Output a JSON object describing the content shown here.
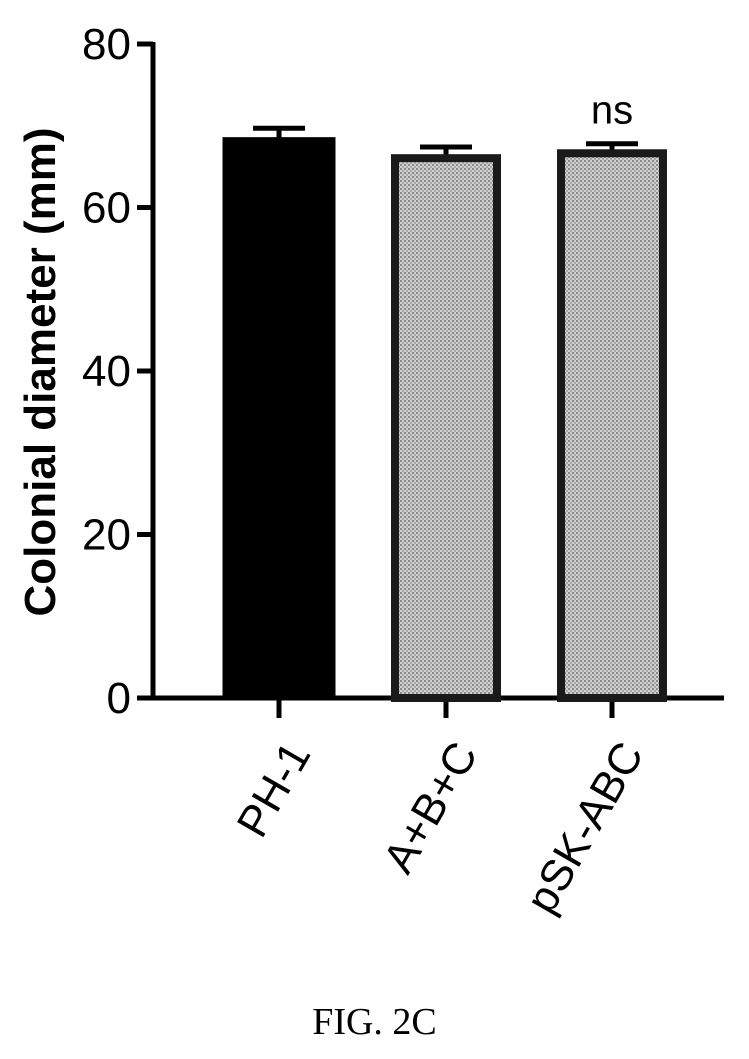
{
  "chart_data": {
    "type": "bar",
    "categories": [
      "PH-1",
      "A+B+C",
      "pSK-ABC"
    ],
    "series": [
      {
        "values": [
          68.3,
          66.4,
          67.0
        ],
        "errors": [
          1.4,
          1.0,
          0.8
        ]
      }
    ],
    "bar_fills": [
      "solid",
      "dotted",
      "dotted"
    ],
    "annotations": [
      {
        "category": "pSK-ABC",
        "text": "ns"
      }
    ],
    "title": "",
    "xlabel": "",
    "ylabel": "Colonial diameter (mm)",
    "ylim": [
      0,
      80
    ],
    "yticks": [
      0,
      20,
      40,
      60,
      80
    ],
    "grid": false,
    "colors": {
      "bar": "#000000",
      "edge": "#1a1a1a",
      "pattern_bg": "#d0d0d0",
      "pattern_dot": "#8a8a8a"
    }
  },
  "caption": "FIG. 2C"
}
